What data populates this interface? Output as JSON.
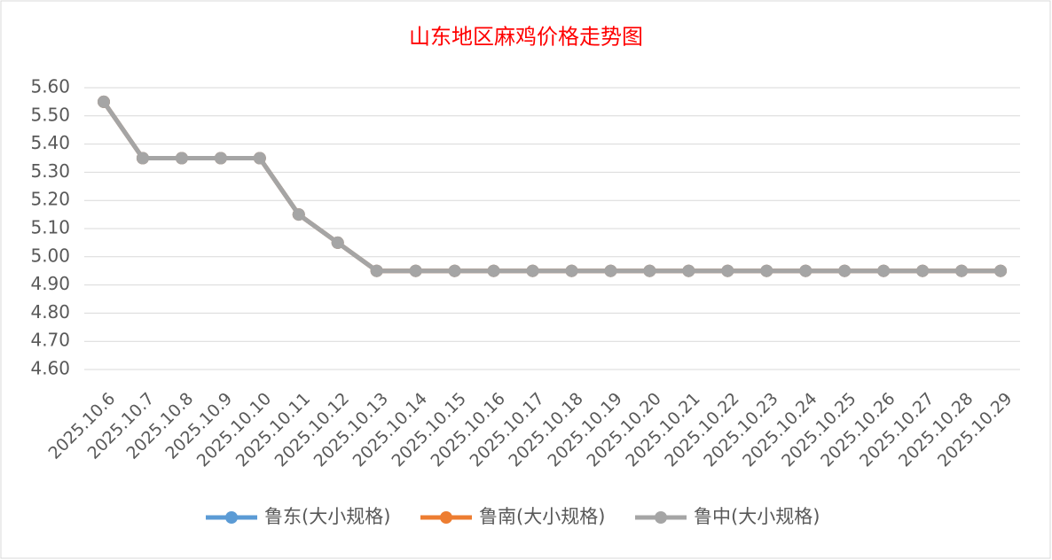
{
  "chart_data": {
    "type": "line",
    "title": "山东地区麻鸡价格走势图",
    "categories": [
      "2025.10.6",
      "2025.10.7",
      "2025.10.8",
      "2025.10.9",
      "2025.10.10",
      "2025.10.11",
      "2025.10.12",
      "2025.10.13",
      "2025.10.14",
      "2025.10.15",
      "2025.10.16",
      "2025.10.17",
      "2025.10.18",
      "2025.10.19",
      "2025.10.20",
      "2025.10.21",
      "2025.10.22",
      "2025.10.23",
      "2025.10.24",
      "2025.10.25",
      "2025.10.26",
      "2025.10.27",
      "2025.10.28",
      "2025.10.29"
    ],
    "series": [
      {
        "name": "鲁东(大小规格)",
        "color": "#5b9bd5",
        "values": [
          5.55,
          5.35,
          5.35,
          5.35,
          5.35,
          5.15,
          5.05,
          4.95,
          4.95,
          4.95,
          4.95,
          4.95,
          4.95,
          4.95,
          4.95,
          4.95,
          4.95,
          4.95,
          4.95,
          4.95,
          4.95,
          4.95,
          4.95,
          4.95
        ]
      },
      {
        "name": "鲁南(大小规格)",
        "color": "#ed7d31",
        "values": [
          5.55,
          5.35,
          5.35,
          5.35,
          5.35,
          5.15,
          5.05,
          4.95,
          4.95,
          4.95,
          4.95,
          4.95,
          4.95,
          4.95,
          4.95,
          4.95,
          4.95,
          4.95,
          4.95,
          4.95,
          4.95,
          4.95,
          4.95,
          4.95
        ]
      },
      {
        "name": "鲁中(大小规格)",
        "color": "#a5a5a5",
        "values": [
          5.55,
          5.35,
          5.35,
          5.35,
          5.35,
          5.15,
          5.05,
          4.95,
          4.95,
          4.95,
          4.95,
          4.95,
          4.95,
          4.95,
          4.95,
          4.95,
          4.95,
          4.95,
          4.95,
          4.95,
          4.95,
          4.95,
          4.95,
          4.95
        ]
      }
    ],
    "ylim": [
      4.6,
      5.6
    ],
    "yticks": [
      {
        "value": 4.6,
        "label": "4.60"
      },
      {
        "value": 4.7,
        "label": "4.70"
      },
      {
        "value": 4.8,
        "label": "4.80"
      },
      {
        "value": 4.9,
        "label": "4.90"
      },
      {
        "value": 5.0,
        "label": "5.00"
      },
      {
        "value": 5.1,
        "label": "5.10"
      },
      {
        "value": 5.2,
        "label": "5.20"
      },
      {
        "value": 5.3,
        "label": "5.30"
      },
      {
        "value": 5.4,
        "label": "5.40"
      },
      {
        "value": 5.5,
        "label": "5.50"
      },
      {
        "value": 5.6,
        "label": "5.60"
      }
    ],
    "grid": true,
    "legend": "bottom"
  }
}
